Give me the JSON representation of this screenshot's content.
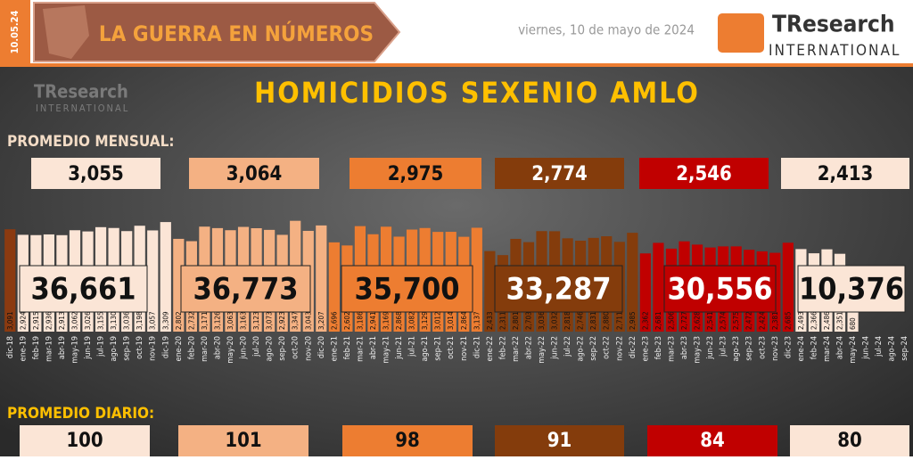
{
  "header": {
    "date_stamp": "10.05.24",
    "banner": "LA GUERRA EN NÚMEROS",
    "date": "viernes, 10 de mayo de 2024",
    "logo_name": "TResearch",
    "logo_sub": "INTERNATIONAL"
  },
  "chart_data": {
    "type": "bar",
    "title": "HOMICIDIOS SEXENIO AMLO",
    "categories": [
      "dic-18",
      "ene-19",
      "feb-19",
      "mar-19",
      "abr-19",
      "may-19",
      "jun-19",
      "jul-19",
      "ago-19",
      "sep-19",
      "oct-19",
      "nov-19",
      "dic-19",
      "ene-20",
      "feb-20",
      "mar-20",
      "abr-20",
      "may-20",
      "jun-20",
      "jul-20",
      "ago-20",
      "sep-20",
      "oct-20",
      "nov-20",
      "dic-20",
      "ene-21",
      "feb-21",
      "mar-21",
      "abr-21",
      "may-21",
      "jun-21",
      "jul-21",
      "ago-21",
      "sep-21",
      "oct-21",
      "nov-21",
      "dic-21",
      "ene-22",
      "feb-22",
      "mar-22",
      "abr-22",
      "may-22",
      "jun-22",
      "jul-22",
      "ago-22",
      "sep-22",
      "oct-22",
      "nov-22",
      "dic-22",
      "ene-23",
      "feb-23",
      "mar-23",
      "abr-23",
      "may-23",
      "jun-23",
      "jul-23",
      "ago-23",
      "sep-23",
      "oct-23",
      "nov-23",
      "dic-23",
      "ene-24",
      "feb-24",
      "mar-24",
      "abr-24",
      "may-24",
      "jun-24",
      "jul-24",
      "ago-24",
      "sep-24"
    ],
    "values": [
      3091,
      2924,
      2915,
      2936,
      2913,
      3062,
      3026,
      3155,
      3130,
      3036,
      3198,
      3057,
      3309,
      2802,
      2732,
      3171,
      3126,
      3063,
      3163,
      3123,
      3073,
      2923,
      3347,
      3043,
      3207,
      2696,
      2602,
      3186,
      2941,
      3169,
      2868,
      3082,
      3129,
      3012,
      3014,
      2864,
      3137,
      2433,
      2311,
      2801,
      2703,
      3036,
      3032,
      2818,
      2746,
      2831,
      2880,
      2711,
      2985,
      2362,
      2681,
      2506,
      2727,
      2628,
      2541,
      2574,
      2575,
      2472,
      2424,
      2381,
      2685,
      2493,
      2366,
      2486,
      2351,
      680,
      null,
      null,
      null,
      null
    ],
    "value_labels": [
      "3,091",
      "2,924",
      "2,915",
      "2,936",
      "2,913",
      "3,062",
      "3,026",
      "3,155",
      "3,130",
      "3,036",
      "3,198",
      "3,057",
      "3,309",
      "2,802",
      "2,732",
      "3,171",
      "3,126",
      "3,063",
      "3,163",
      "3,123",
      "3,073",
      "2,923",
      "3,347",
      "3,043",
      "3,207",
      "2,696",
      "2,602",
      "3,186",
      "2,941",
      "3,169",
      "2,868",
      "3,082",
      "3,129",
      "3,012",
      "3,014",
      "2,864",
      "3,137",
      "2,433",
      "2,311",
      "2,801",
      "2,703",
      "3,036",
      "3,032",
      "2,818",
      "2,746",
      "2,831",
      "2,880",
      "2,711",
      "2,985",
      "2,362",
      "2,681",
      "2,506",
      "2,727",
      "2,628",
      "2,541",
      "2,574",
      "2,575",
      "2,472",
      "2,424",
      "2,381",
      "2,685",
      "2,493",
      "2,366",
      "2,486",
      "2,351",
      "680",
      null,
      null,
      null,
      null
    ],
    "colors": [
      "#8b3a10",
      "#fbe5d6",
      "#fbe5d6",
      "#fbe5d6",
      "#fbe5d6",
      "#fbe5d6",
      "#fbe5d6",
      "#fbe5d6",
      "#fbe5d6",
      "#fbe5d6",
      "#fbe5d6",
      "#fbe5d6",
      "#fbe5d6",
      "#f4b183",
      "#f4b183",
      "#f4b183",
      "#f4b183",
      "#f4b183",
      "#f4b183",
      "#f4b183",
      "#f4b183",
      "#f4b183",
      "#f4b183",
      "#f4b183",
      "#f4b183",
      "#ed7d31",
      "#ed7d31",
      "#ed7d31",
      "#ed7d31",
      "#ed7d31",
      "#ed7d31",
      "#ed7d31",
      "#ed7d31",
      "#ed7d31",
      "#ed7d31",
      "#ed7d31",
      "#ed7d31",
      "#843c0c",
      "#843c0c",
      "#843c0c",
      "#843c0c",
      "#843c0c",
      "#843c0c",
      "#843c0c",
      "#843c0c",
      "#843c0c",
      "#843c0c",
      "#843c0c",
      "#843c0c",
      "#c00000",
      "#c00000",
      "#c00000",
      "#c00000",
      "#c00000",
      "#c00000",
      "#c00000",
      "#c00000",
      "#c00000",
      "#c00000",
      "#c00000",
      "#c00000",
      "#fbe5d6",
      "#fbe5d6",
      "#fbe5d6",
      "#fbe5d6",
      "#fbe5d6",
      "#fbe5d6",
      "#fbe5d6",
      "#fbe5d6",
      "#fbe5d6"
    ],
    "ylim": [
      0,
      3500
    ]
  },
  "summary": {
    "monthly_label": "PROMEDIO MENSUAL:",
    "daily_label": "PROMEDIO DIARIO:",
    "periods": [
      {
        "monthly": "3,055",
        "total": "36,661",
        "daily": 100,
        "color": "#fbe5d6",
        "text_color": "#111"
      },
      {
        "monthly": "3,064",
        "total": "36,773",
        "daily": 101,
        "color": "#f4b183",
        "text_color": "#111"
      },
      {
        "monthly": "2,975",
        "total": "35,700",
        "daily": 98,
        "color": "#ed7d31",
        "text_color": "#111"
      },
      {
        "monthly": "2,774",
        "total": "33,287",
        "daily": 91,
        "color": "#843c0c",
        "text_color": "#fff"
      },
      {
        "monthly": "2,546",
        "total": "30,556",
        "daily": 84,
        "color": "#c00000",
        "text_color": "#fff"
      },
      {
        "monthly": "2,413",
        "total": "10,376",
        "daily": 80,
        "color": "#fbe5d6",
        "text_color": "#111"
      }
    ]
  }
}
